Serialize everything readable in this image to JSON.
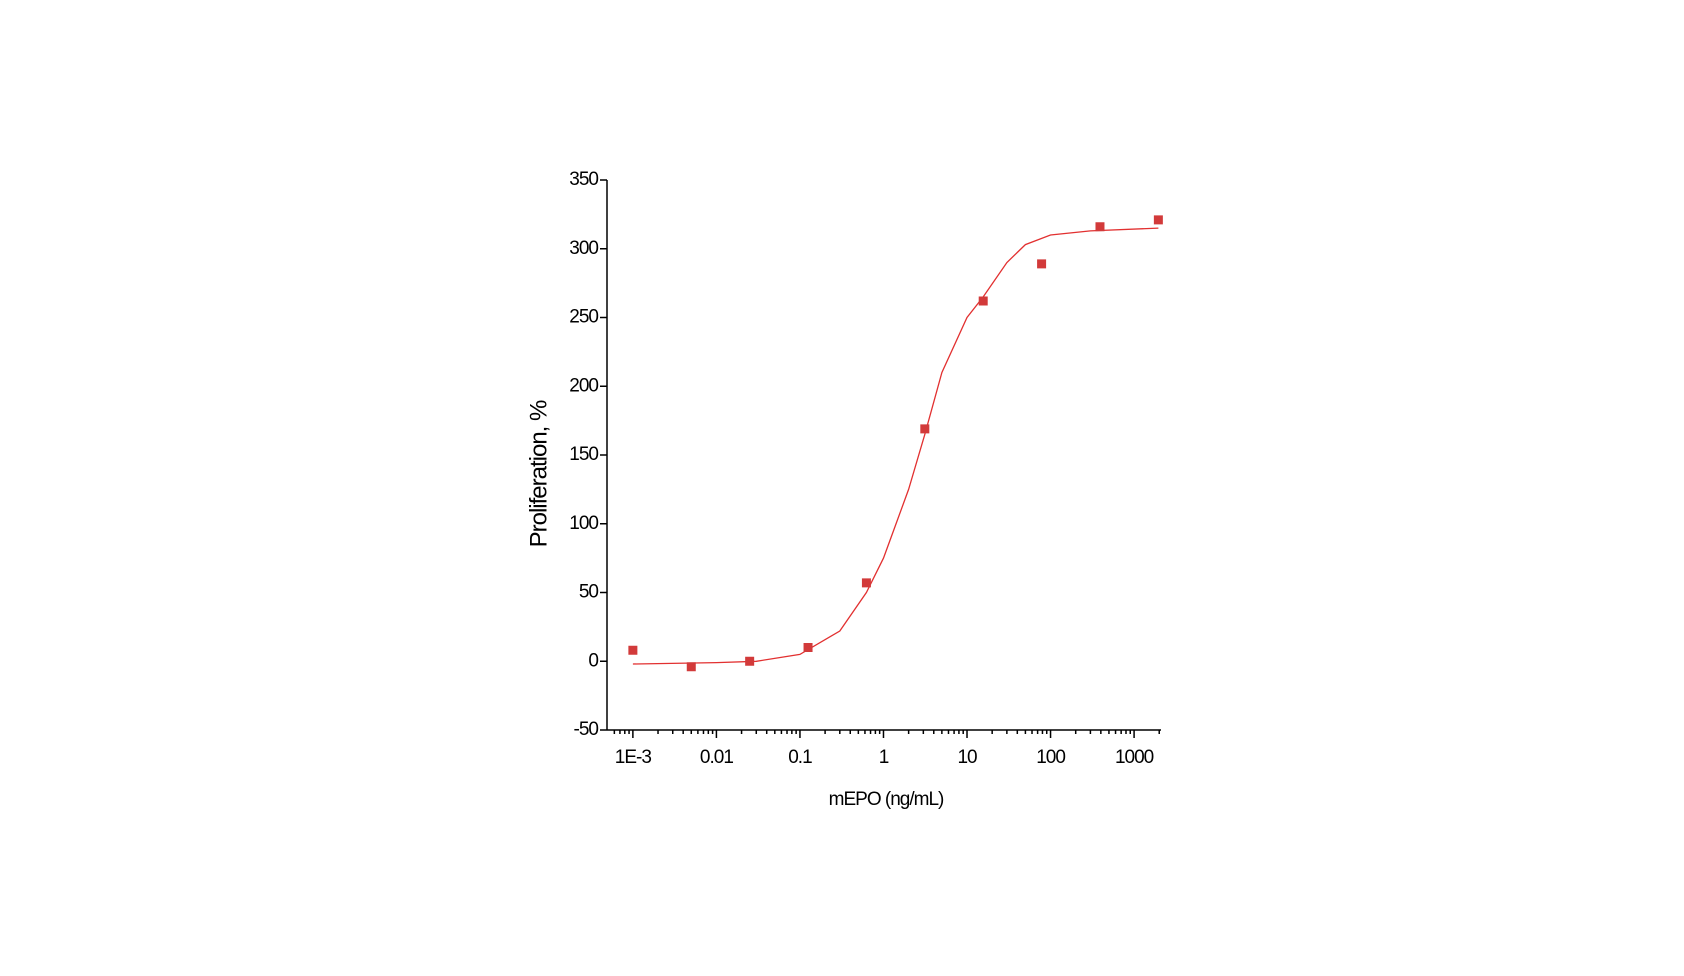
{
  "chart_data": {
    "type": "scatter",
    "x_label": "mEPO (ng/mL)",
    "y_label": "Proliferation, %",
    "x": [
      0.001,
      0.005,
      0.025,
      0.125,
      0.625,
      3.125,
      15.625,
      78.125,
      390.625,
      1953.125
    ],
    "values": [
      8,
      -4,
      0,
      10,
      57,
      169,
      262,
      289,
      316,
      321
    ],
    "color": "#d23a3a",
    "fit": {
      "color": "#e23030",
      "x": [
        0.001,
        0.01,
        0.03,
        0.1,
        0.3,
        0.625,
        1,
        2,
        3.125,
        5,
        10,
        15.625,
        30,
        50,
        100,
        300,
        1953.125
      ],
      "values": [
        -2,
        -1,
        0,
        5,
        22,
        50,
        75,
        125,
        165,
        210,
        250,
        265,
        290,
        303,
        310,
        313,
        315
      ]
    },
    "x_log": true,
    "xlim": [
      0.00049,
      2100
    ],
    "ylim": [
      -50,
      350
    ],
    "xticks": [
      {
        "value": 0.001,
        "label": "1E-3"
      },
      0.01,
      0.1,
      1,
      10,
      100,
      1000
    ],
    "xminorticks": [
      0.0006,
      0.0007,
      0.0008,
      0.0009,
      0.002,
      0.003,
      0.004,
      0.005,
      0.006,
      0.007,
      0.008,
      0.009,
      0.02,
      0.03,
      0.04,
      0.05,
      0.06,
      0.07,
      0.08,
      0.09,
      0.2,
      0.3,
      0.4,
      0.5,
      0.6,
      0.7,
      0.8,
      0.9,
      2,
      3,
      4,
      5,
      6,
      7,
      8,
      9,
      20,
      30,
      40,
      50,
      60,
      70,
      80,
      90,
      200,
      300,
      400,
      500,
      600,
      700,
      800,
      900,
      2000
    ],
    "yticks": [
      -50,
      0,
      50,
      100,
      150,
      200,
      250,
      300,
      350
    ],
    "grid": false
  }
}
